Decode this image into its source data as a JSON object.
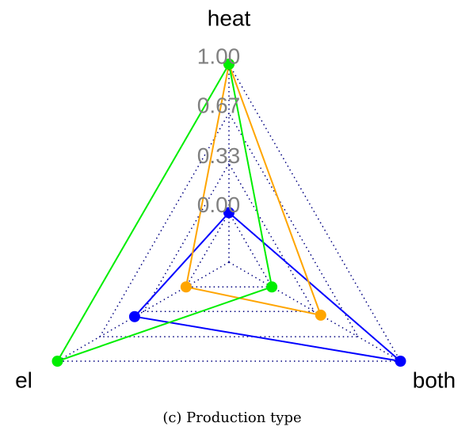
{
  "chart_data": {
    "type": "radar",
    "caption": "(c) Production type",
    "categories": [
      "heat",
      "el",
      "both"
    ],
    "ylim": [
      0,
      1
    ],
    "yticks": [
      {
        "value": 0,
        "label": "0.00"
      },
      {
        "value": 0.33,
        "label": "0.33"
      },
      {
        "value": 0.67,
        "label": "0.67"
      },
      {
        "value": 1,
        "label": "1.00"
      }
    ],
    "series": [
      {
        "color": "#0000ff",
        "values": [
          0,
          0.4,
          1
        ]
      },
      {
        "color": "#ffa500",
        "values": [
          1,
          0,
          0.38
        ]
      },
      {
        "color": "#00ee00",
        "values": [
          1,
          1,
          0
        ]
      }
    ]
  }
}
